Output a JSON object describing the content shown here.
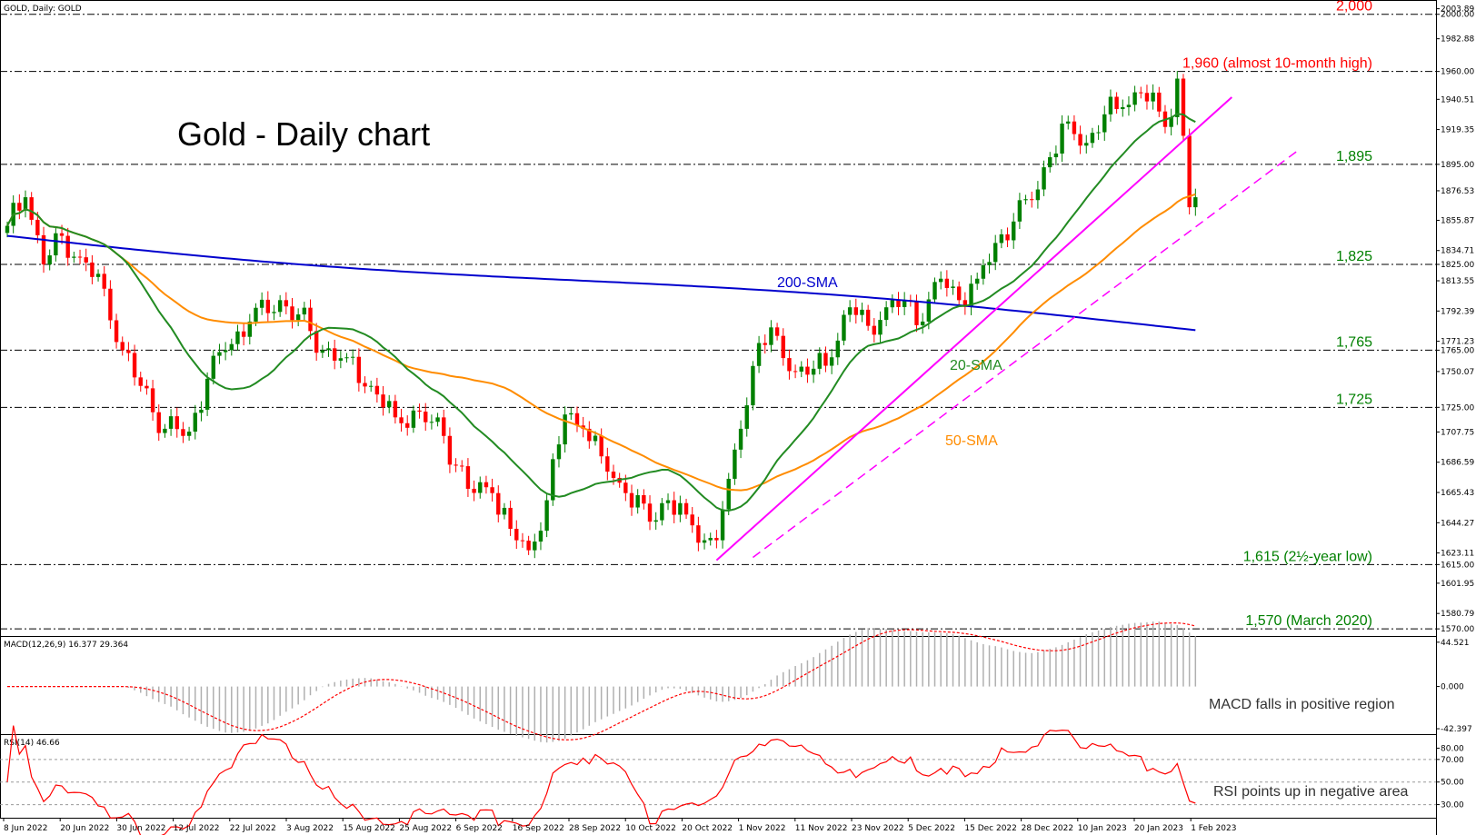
{
  "header": {
    "symbol_label": "GOLD, Daily:  GOLD",
    "chart_title": "Gold - Daily chart"
  },
  "colors": {
    "bull": "#008000",
    "bear": "#ff0000",
    "sma20": "#228b22",
    "sma50": "#ff8c00",
    "sma200": "#0000cd",
    "trend": "#ff00ff",
    "level_red": "#ff0000",
    "level_green": "#008000",
    "rsi": "#ff0000",
    "macd_signal": "#ff0000",
    "macd_hist": "#b0b0b0"
  },
  "chart_data": [
    {
      "type": "candlestick",
      "title": "Gold - Daily chart",
      "ylim": [
        1565,
        2010
      ],
      "y_ticks": [
        "2003.89",
        "2000.00",
        "1982.88",
        "1960.00",
        "1940.51",
        "1919.35",
        "1895.00",
        "1876.53",
        "1855.87",
        "1834.71",
        "1825.00",
        "1813.55",
        "1792.39",
        "1771.23",
        "1765.00",
        "1750.07",
        "1725.00",
        "1707.75",
        "1686.59",
        "1665.43",
        "1644.27",
        "1623.11",
        "1615.00",
        "1601.95",
        "1580.79",
        "1570.00"
      ],
      "x_ticks": [
        "8 Jun 2022",
        "20 Jun 2022",
        "30 Jun 2022",
        "12 Jul 2022",
        "22 Jul 2022",
        "3 Aug 2022",
        "15 Aug 2022",
        "25 Aug 2022",
        "6 Sep 2022",
        "16 Sep 2022",
        "28 Sep 2022",
        "10 Oct 2022",
        "20 Oct 2022",
        "1 Nov 2022",
        "11 Nov 2022",
        "23 Nov 2022",
        "5 Dec 2022",
        "15 Dec 2022",
        "28 Dec 2022",
        "10 Jan 2023",
        "20 Jan 2023",
        "1 Feb 2023"
      ],
      "close_anchors": [
        {
          "bar": 0,
          "value": 1852
        },
        {
          "bar": 3,
          "value": 1872
        },
        {
          "bar": 6,
          "value": 1825
        },
        {
          "bar": 9,
          "value": 1845
        },
        {
          "bar": 12,
          "value": 1830
        },
        {
          "bar": 16,
          "value": 1808
        },
        {
          "bar": 19,
          "value": 1765
        },
        {
          "bar": 22,
          "value": 1740
        },
        {
          "bar": 26,
          "value": 1710
        },
        {
          "bar": 30,
          "value": 1708
        },
        {
          "bar": 33,
          "value": 1745
        },
        {
          "bar": 36,
          "value": 1765
        },
        {
          "bar": 40,
          "value": 1785
        },
        {
          "bar": 45,
          "value": 1800
        },
        {
          "bar": 48,
          "value": 1790
        },
        {
          "bar": 52,
          "value": 1765
        },
        {
          "bar": 56,
          "value": 1760
        },
        {
          "bar": 60,
          "value": 1740
        },
        {
          "bar": 64,
          "value": 1718
        },
        {
          "bar": 68,
          "value": 1722
        },
        {
          "bar": 72,
          "value": 1705
        },
        {
          "bar": 76,
          "value": 1668
        },
        {
          "bar": 80,
          "value": 1665
        },
        {
          "bar": 83,
          "value": 1640
        },
        {
          "bar": 86,
          "value": 1625
        },
        {
          "bar": 89,
          "value": 1660
        },
        {
          "bar": 92,
          "value": 1720
        },
        {
          "bar": 95,
          "value": 1710
        },
        {
          "bar": 99,
          "value": 1680
        },
        {
          "bar": 102,
          "value": 1665
        },
        {
          "bar": 106,
          "value": 1645
        },
        {
          "bar": 109,
          "value": 1660
        },
        {
          "bar": 112,
          "value": 1650
        },
        {
          "bar": 115,
          "value": 1632
        },
        {
          "bar": 117,
          "value": 1632
        },
        {
          "bar": 119,
          "value": 1675
        },
        {
          "bar": 121,
          "value": 1710
        },
        {
          "bar": 124,
          "value": 1770
        },
        {
          "bar": 127,
          "value": 1775
        },
        {
          "bar": 130,
          "value": 1750
        },
        {
          "bar": 133,
          "value": 1752
        },
        {
          "bar": 136,
          "value": 1760
        },
        {
          "bar": 139,
          "value": 1795
        },
        {
          "bar": 142,
          "value": 1782
        },
        {
          "bar": 145,
          "value": 1795
        },
        {
          "bar": 148,
          "value": 1800
        },
        {
          "bar": 151,
          "value": 1785
        },
        {
          "bar": 154,
          "value": 1815
        },
        {
          "bar": 157,
          "value": 1800
        },
        {
          "bar": 160,
          "value": 1815
        },
        {
          "bar": 163,
          "value": 1840
        },
        {
          "bar": 166,
          "value": 1855
        },
        {
          "bar": 169,
          "value": 1870
        },
        {
          "bar": 172,
          "value": 1900
        },
        {
          "bar": 175,
          "value": 1925
        },
        {
          "bar": 178,
          "value": 1910
        },
        {
          "bar": 181,
          "value": 1930
        },
        {
          "bar": 184,
          "value": 1935
        },
        {
          "bar": 187,
          "value": 1945
        },
        {
          "bar": 190,
          "value": 1932
        },
        {
          "bar": 192,
          "value": 1928
        },
        {
          "bar": 193,
          "value": 1955
        },
        {
          "bar": 194,
          "value": 1915
        },
        {
          "bar": 195,
          "value": 1865
        },
        {
          "bar": 196,
          "value": 1872
        }
      ],
      "sma_period_labels": {
        "sma20": "20-SMA",
        "sma50": "50-SMA",
        "sma200": "200-SMA"
      },
      "levels": [
        {
          "value": 2000,
          "label": "2,000",
          "color": "red"
        },
        {
          "value": 1960,
          "label": "1,960 (almost 10-month high)",
          "color": "red"
        },
        {
          "value": 1895,
          "label": "1,895",
          "color": "green"
        },
        {
          "value": 1825,
          "label": "1,825",
          "color": "green"
        },
        {
          "value": 1765,
          "label": "1,765",
          "color": "green"
        },
        {
          "value": 1725,
          "label": "1,725",
          "color": "green"
        },
        {
          "value": 1615,
          "label": "1,615 (2½-year low)",
          "color": "green"
        },
        {
          "value": 1570,
          "label": "1,570 (March 2020)",
          "color": "green"
        }
      ],
      "trendline": {
        "from_bar": 117,
        "from_value": 1618,
        "to_bar": 202,
        "to_value": 1942
      },
      "trendline_dashed": {
        "from_bar": 123,
        "from_value": 1620,
        "to_bar": 213,
        "to_value": 1905
      }
    },
    {
      "type": "line",
      "title": "MACD(12,26,9) 16.377 29.364",
      "ylim": [
        -46,
        48
      ],
      "y_ticks": [
        "44.521",
        "0.000",
        "-42.397"
      ],
      "annotation": "MACD falls in positive region"
    },
    {
      "type": "line",
      "title": "RSI(14) 46.66",
      "ylim": [
        20,
        90
      ],
      "y_ticks": [
        "80.00",
        "70.00",
        "50.00",
        "30.00"
      ],
      "annotation": "RSI points up in negative area"
    }
  ]
}
